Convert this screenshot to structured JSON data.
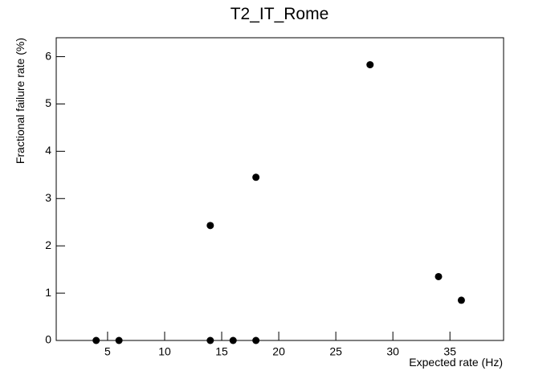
{
  "chart_data": {
    "type": "scatter",
    "title": "T2_IT_Rome",
    "x_label": "Expected rate (Hz)",
    "y_label": "Fractional failure rate (%)",
    "x": [
      4,
      6,
      14,
      16,
      18,
      14,
      18,
      28,
      34,
      36
    ],
    "values": [
      0,
      0,
      0,
      0,
      0,
      2.43,
      3.45,
      5.83,
      1.35,
      0.85
    ],
    "color": "#000000",
    "xlim": [
      0.5,
      39.7
    ],
    "xticks": [
      5,
      10,
      15,
      20,
      25,
      30,
      35
    ],
    "ylim": [
      0,
      6.4
    ],
    "yticks": [
      0,
      1,
      2,
      3,
      4,
      5,
      6
    ]
  }
}
